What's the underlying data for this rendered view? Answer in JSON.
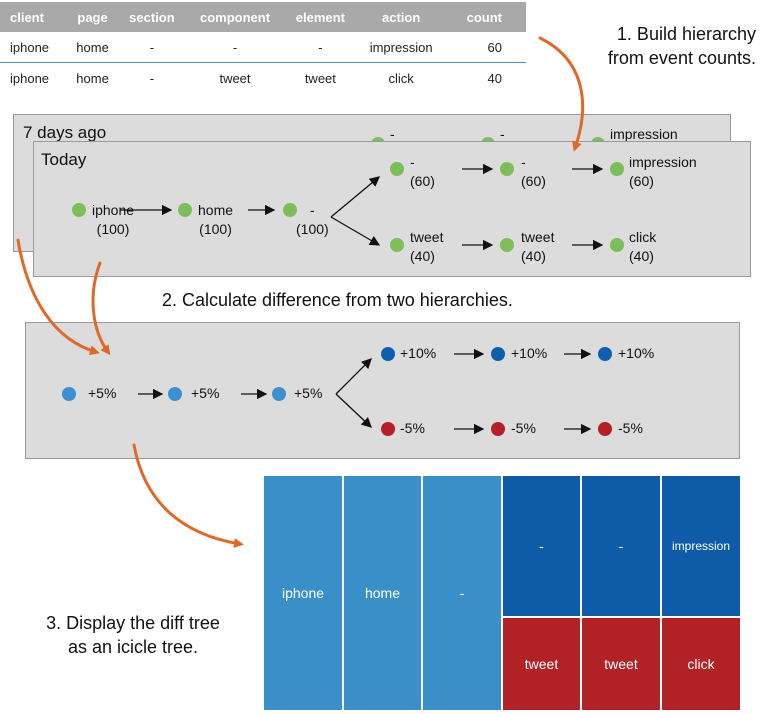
{
  "table": {
    "headers": [
      "client",
      "page",
      "section",
      "component",
      "element",
      "action",
      "count"
    ],
    "rows": [
      [
        "iphone",
        "home",
        "-",
        "-",
        "-",
        "impression",
        "60"
      ],
      [
        "iphone",
        "home",
        "-",
        "tweet",
        "tweet",
        "click",
        "40"
      ]
    ]
  },
  "steps": {
    "step1_line1": "1. Build hierarchy",
    "step1_line2": "from event counts.",
    "step2": "2. Calculate difference from two hierarchies.",
    "step3_line1": "3. Display the diff tree",
    "step3_line2": "as an icicle tree."
  },
  "back_panel": {
    "title": "7 days ago",
    "visible_labels": [
      "-",
      "-",
      "impression"
    ]
  },
  "today_panel": {
    "title": "Today",
    "nodes": [
      {
        "name": "iphone",
        "count": "(100)"
      },
      {
        "name": "home",
        "count": "(100)"
      },
      {
        "name": "-",
        "count": "(100)"
      },
      {
        "name": "-",
        "count": "(60)"
      },
      {
        "name": "-",
        "count": "(60)"
      },
      {
        "name": "impression",
        "count": "(60)"
      },
      {
        "name": "tweet",
        "count": "(40)"
      },
      {
        "name": "tweet",
        "count": "(40)"
      },
      {
        "name": "click",
        "count": "(40)"
      }
    ]
  },
  "diff_panel": {
    "nodes": [
      "+5%",
      "+5%",
      "+5%",
      "+10%",
      "+10%",
      "+10%",
      "-5%",
      "-5%",
      "-5%"
    ]
  },
  "icicle": {
    "cells": [
      "iphone",
      "home",
      "-",
      "-",
      "-",
      "impression",
      "tweet",
      "tweet",
      "click"
    ]
  },
  "colors": {
    "arrow": "#e0692a",
    "green": "#7dbe5a",
    "light_blue": "#3d8fcf",
    "dark_blue": "#0e5fae",
    "red": "#b52027"
  }
}
